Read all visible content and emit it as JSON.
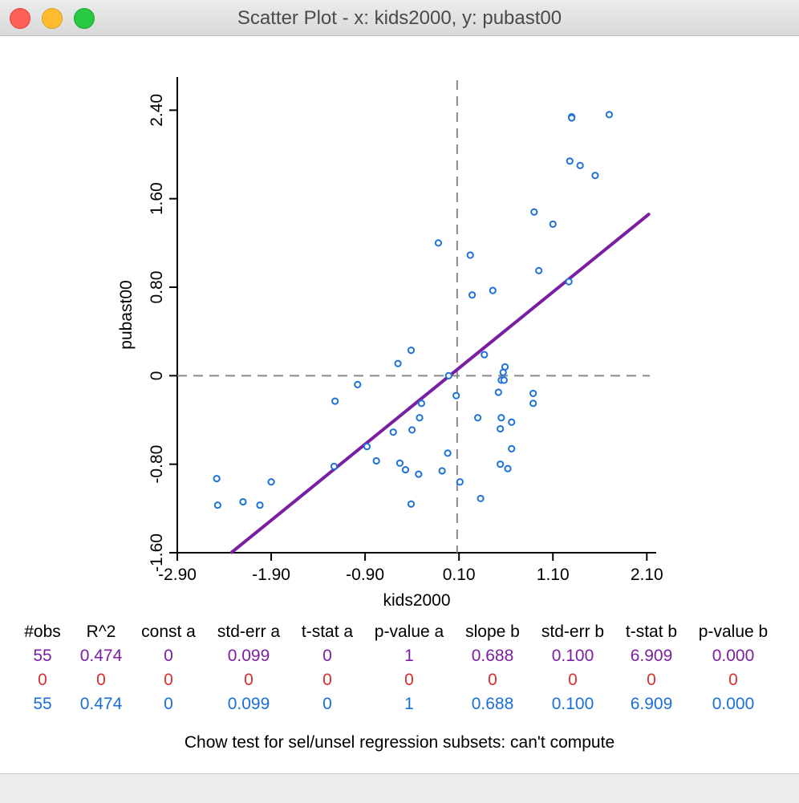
{
  "window": {
    "title": "Scatter Plot - x: kids2000, y: pubast00"
  },
  "chart_data": {
    "type": "scatter",
    "xlabel": "kids2000",
    "ylabel": "pubast00",
    "xlim": [
      -2.9,
      2.2
    ],
    "ylim": [
      -1.6,
      2.7
    ],
    "xticks": [
      "-2.90",
      "-1.90",
      "-0.90",
      "0.10",
      "1.10",
      "2.10"
    ],
    "xtick_values": [
      -2.9,
      -1.9,
      -0.9,
      0.1,
      1.1,
      2.1
    ],
    "yticks": [
      "-1.60",
      "-0.80",
      "0",
      "0.80",
      "1.60",
      "2.40"
    ],
    "ytick_values": [
      -1.6,
      -0.8,
      0,
      0.8,
      1.6,
      2.4
    ],
    "mean_x": 0.08,
    "mean_y": 0.0,
    "regression": {
      "intercept": 0.0,
      "slope": 0.688,
      "x_from": -2.32,
      "x_to": 2.12,
      "color": "#7b1fa2"
    },
    "point_color": "#1f73d6",
    "points": [
      [
        1.3,
        2.34
      ],
      [
        1.3,
        2.33
      ],
      [
        1.7,
        2.36
      ],
      [
        1.28,
        1.94
      ],
      [
        1.39,
        1.9
      ],
      [
        1.55,
        1.81
      ],
      [
        0.9,
        1.48
      ],
      [
        1.1,
        1.37
      ],
      [
        0.95,
        0.95
      ],
      [
        1.27,
        0.85
      ],
      [
        -0.12,
        1.2
      ],
      [
        0.22,
        1.09
      ],
      [
        0.24,
        0.73
      ],
      [
        0.46,
        0.77
      ],
      [
        0.37,
        0.19
      ],
      [
        0.59,
        0.08
      ],
      [
        0.57,
        0.03
      ],
      [
        0.55,
        -0.04
      ],
      [
        0.58,
        -0.04
      ],
      [
        0.52,
        -0.15
      ],
      [
        0.89,
        -0.16
      ],
      [
        0.89,
        -0.25
      ],
      [
        0.3,
        -0.38
      ],
      [
        0.55,
        -0.38
      ],
      [
        0.66,
        -0.42
      ],
      [
        0.54,
        -0.48
      ],
      [
        0.66,
        -0.66
      ],
      [
        0.54,
        -0.8
      ],
      [
        0.62,
        -0.84
      ],
      [
        0.33,
        -1.11
      ],
      [
        0.07,
        -0.18
      ],
      [
        -0.3,
        -0.25
      ],
      [
        -0.32,
        -0.38
      ],
      [
        -0.4,
        -0.49
      ],
      [
        -0.6,
        -0.51
      ],
      [
        -0.55,
        0.11
      ],
      [
        -0.41,
        0.23
      ],
      [
        -0.01,
        0.0
      ],
      [
        -1.22,
        -0.23
      ],
      [
        -0.98,
        -0.08
      ],
      [
        -0.88,
        -0.64
      ],
      [
        -0.78,
        -0.77
      ],
      [
        -1.23,
        -0.82
      ],
      [
        -0.53,
        -0.79
      ],
      [
        -0.47,
        -0.85
      ],
      [
        -0.33,
        -0.89
      ],
      [
        -0.08,
        -0.86
      ],
      [
        -0.02,
        -0.7
      ],
      [
        0.11,
        -0.96
      ],
      [
        -0.41,
        -1.16
      ],
      [
        -1.9,
        -0.96
      ],
      [
        -2.48,
        -0.93
      ],
      [
        -2.47,
        -1.17
      ],
      [
        -2.2,
        -1.14
      ],
      [
        -2.02,
        -1.17
      ]
    ]
  },
  "stats": {
    "headers": [
      "#obs",
      "R^2",
      "const a",
      "std-err a",
      "t-stat a",
      "p-value a",
      "slope b",
      "std-err b",
      "t-stat b",
      "p-value b"
    ],
    "rows": [
      {
        "color": "#7b1fa2",
        "values": [
          "55",
          "0.474",
          "0",
          "0.099",
          "0",
          "1",
          "0.688",
          "0.100",
          "6.909",
          "0.000"
        ]
      },
      {
        "color": "#d63030",
        "values": [
          "0",
          "0",
          "0",
          "0",
          "0",
          "0",
          "0",
          "0",
          "0",
          "0"
        ]
      },
      {
        "color": "#1a6fd9",
        "values": [
          "55",
          "0.474",
          "0",
          "0.099",
          "0",
          "1",
          "0.688",
          "0.100",
          "6.909",
          "0.000"
        ]
      }
    ]
  },
  "footer": {
    "chow": "Chow test for sel/unsel regression subsets: can't compute"
  }
}
